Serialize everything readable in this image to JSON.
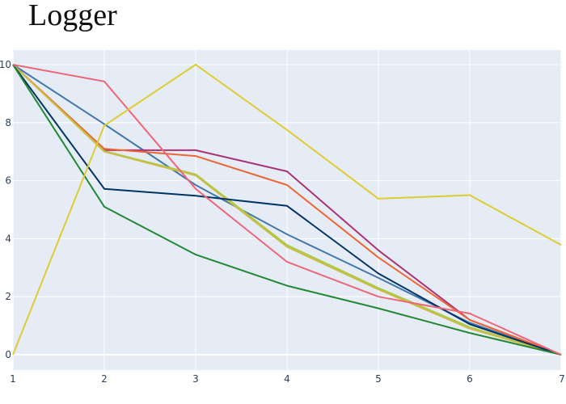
{
  "chart_data": {
    "type": "line",
    "title": "Logger",
    "xlabel": "",
    "ylabel": "",
    "x": [
      1,
      2,
      3,
      4,
      5,
      6,
      7
    ],
    "xlim": [
      1,
      7
    ],
    "ylim": [
      0,
      10
    ],
    "x_ticks": [
      1,
      2,
      3,
      4,
      5,
      6,
      7
    ],
    "y_ticks": [
      0,
      2,
      4,
      6,
      8,
      10
    ],
    "grid": true,
    "legend": "none",
    "plot_background": "#e5ecf6",
    "grid_color": "#ffffff",
    "series": [
      {
        "color": "#4477aa",
        "values": [
          10,
          7.95,
          5.85,
          4.15,
          2.65,
          1.1,
          0.0
        ]
      },
      {
        "color": "#aa3377",
        "values": [
          10,
          7.05,
          7.05,
          6.32,
          3.6,
          1.2,
          0.0
        ]
      },
      {
        "color": "#ee6633",
        "values": [
          10,
          7.1,
          6.85,
          5.85,
          3.35,
          1.2,
          0.0
        ]
      },
      {
        "color": "#aacc44",
        "values": [
          10,
          7.02,
          6.22,
          3.78,
          2.3,
          0.95,
          0.0
        ]
      },
      {
        "color": "#ccbb44",
        "values": [
          10,
          7.0,
          6.18,
          3.72,
          2.25,
          0.9,
          0.0
        ]
      },
      {
        "color": "#003366",
        "values": [
          10,
          5.72,
          5.48,
          5.13,
          2.8,
          1.05,
          0.0
        ]
      },
      {
        "color": "#228833",
        "values": [
          10,
          5.1,
          3.45,
          2.38,
          1.6,
          0.75,
          0.0
        ]
      },
      {
        "color": "#ee6677",
        "values": [
          10,
          9.42,
          5.72,
          3.2,
          2.0,
          1.42,
          0.0
        ]
      },
      {
        "color": "#ddcc33",
        "values": [
          0,
          7.9,
          10,
          7.75,
          5.38,
          5.5,
          3.78
        ]
      }
    ]
  }
}
